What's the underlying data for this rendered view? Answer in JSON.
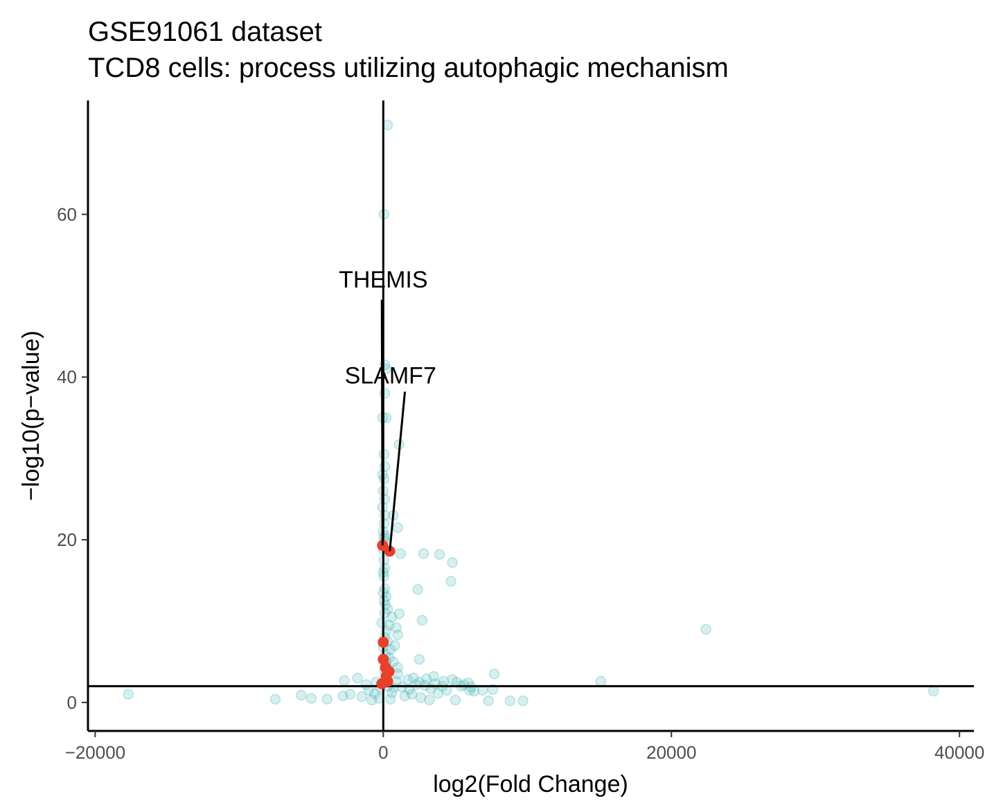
{
  "chart_data": {
    "type": "scatter",
    "title": "GSE91061 dataset",
    "subtitle": "TCD8 cells: process utilizing autophagic mechanism",
    "xlabel": "log2(Fold Change)",
    "ylabel": "−log10(p−value)",
    "xlim": [
      -20500,
      41000
    ],
    "ylim": [
      -3.5,
      74
    ],
    "xticks": [
      -20000,
      0,
      20000,
      40000
    ],
    "xtick_labels": [
      "−20000",
      "0",
      "20000",
      "40000"
    ],
    "yticks": [
      0,
      20,
      40,
      60
    ],
    "ytick_labels": [
      "0",
      "20",
      "40",
      "60"
    ],
    "reference_lines": {
      "vertical_x": 0,
      "horizontal_y": 2
    },
    "colors": {
      "background_points": "#4fb8b8",
      "highlight_points": "#e8402a",
      "lines": "#000000"
    },
    "background_points": [
      [
        300,
        71.0
      ],
      [
        50,
        60.0
      ],
      [
        100,
        41.5
      ],
      [
        200,
        41.0
      ],
      [
        100,
        38.0
      ],
      [
        -50,
        35.0
      ],
      [
        200,
        35.0
      ],
      [
        1100,
        31.7
      ],
      [
        50,
        30.5
      ],
      [
        100,
        29.0
      ],
      [
        -50,
        28.0
      ],
      [
        50,
        27.5
      ],
      [
        0,
        26.0
      ],
      [
        100,
        25.0
      ],
      [
        -50,
        24.0
      ],
      [
        100,
        23.0
      ],
      [
        700,
        23.0
      ],
      [
        50,
        22.0
      ],
      [
        1000,
        21.5
      ],
      [
        0,
        21.0
      ],
      [
        100,
        20.5
      ],
      [
        1200,
        18.3
      ],
      [
        2800,
        18.3
      ],
      [
        3900,
        18.2
      ],
      [
        4800,
        17.2
      ],
      [
        50,
        17.5
      ],
      [
        100,
        16.5
      ],
      [
        0,
        16.0
      ],
      [
        50,
        15.5
      ],
      [
        4700,
        14.9
      ],
      [
        2400,
        13.9
      ],
      [
        100,
        14.0
      ],
      [
        0,
        13.5
      ],
      [
        200,
        13.0
      ],
      [
        50,
        12.5
      ],
      [
        300,
        11.5
      ],
      [
        100,
        11.0
      ],
      [
        1100,
        10.9
      ],
      [
        600,
        10.5
      ],
      [
        2700,
        10.1
      ],
      [
        900,
        9.2
      ],
      [
        400,
        9.5
      ],
      [
        200,
        8.8
      ],
      [
        22400,
        9.0
      ],
      [
        1000,
        8.3
      ],
      [
        100,
        8.0
      ],
      [
        300,
        7.5
      ],
      [
        800,
        7.0
      ],
      [
        500,
        6.5
      ],
      [
        150,
        6.0
      ],
      [
        400,
        5.5
      ],
      [
        2500,
        5.3
      ],
      [
        700,
        5.0
      ],
      [
        200,
        4.5
      ],
      [
        1000,
        4.3
      ],
      [
        7700,
        3.5
      ],
      [
        15100,
        2.6
      ],
      [
        38200,
        1.4
      ],
      [
        -17700,
        1.0
      ],
      [
        -7500,
        0.4
      ],
      [
        -5700,
        0.9
      ],
      [
        -5000,
        0.5
      ],
      [
        -3900,
        0.4
      ],
      [
        -2800,
        0.8
      ],
      [
        -2300,
        1.0
      ],
      [
        -2700,
        2.7
      ],
      [
        -1800,
        3.0
      ],
      [
        -1000,
        1.5
      ],
      [
        -500,
        2.5
      ],
      [
        -300,
        0.5
      ],
      [
        -200,
        1.8
      ],
      [
        -800,
        0.3
      ],
      [
        300,
        2.0
      ],
      [
        600,
        1.2
      ],
      [
        900,
        2.6
      ],
      [
        1300,
        1.9
      ],
      [
        1700,
        2.8
      ],
      [
        2000,
        1.0
      ],
      [
        2300,
        2.2
      ],
      [
        2600,
        0.6
      ],
      [
        3000,
        2.9
      ],
      [
        3300,
        1.7
      ],
      [
        3600,
        2.3
      ],
      [
        3200,
        0.3
      ],
      [
        4100,
        2.0
      ],
      [
        4400,
        1.5
      ],
      [
        5100,
        2.5
      ],
      [
        5400,
        2.0
      ],
      [
        5900,
        2.4
      ],
      [
        6000,
        1.5
      ],
      [
        6300,
        1.4
      ],
      [
        6900,
        1.5
      ],
      [
        7600,
        1.6
      ],
      [
        5000,
        0.3
      ],
      [
        7300,
        0.2
      ],
      [
        8800,
        0.2
      ],
      [
        9700,
        0.2
      ],
      [
        4800,
        2.8
      ],
      [
        3500,
        3.2
      ],
      [
        6100,
        1.9
      ],
      [
        1500,
        0.8
      ],
      [
        2100,
        3.0
      ],
      [
        2900,
        2.1
      ],
      [
        4200,
        2.6
      ],
      [
        -1200,
        2.2
      ],
      [
        -1500,
        0.7
      ],
      [
        500,
        0.4
      ],
      [
        1800,
        1.6
      ],
      [
        2500,
        2.5
      ],
      [
        5600,
        2.2
      ],
      [
        3800,
        1.1
      ],
      [
        1000,
        3.5
      ],
      [
        700,
        1.8
      ],
      [
        -600,
        1.1
      ],
      [
        100,
        3.8
      ],
      [
        0,
        6.8
      ],
      [
        200,
        5.0
      ],
      [
        -100,
        9.8
      ],
      [
        150,
        12.0
      ],
      [
        0,
        18.8
      ],
      [
        100,
        19.8
      ],
      [
        50,
        20.2
      ]
    ],
    "highlight_points": [
      {
        "x": -50,
        "y": 19.3
      },
      {
        "x": 450,
        "y": 18.6
      },
      {
        "x": 0,
        "y": 7.4
      },
      {
        "x": 0,
        "y": 5.3
      },
      {
        "x": 150,
        "y": 4.3
      },
      {
        "x": 400,
        "y": 3.8
      },
      {
        "x": 200,
        "y": 3.2
      },
      {
        "x": 300,
        "y": 2.6
      },
      {
        "x": -100,
        "y": 2.3
      }
    ],
    "annotations": [
      {
        "text": "THEMIS",
        "x": -50,
        "y": 19.3,
        "text_x": 0,
        "text_y": 51.0,
        "line_top_y": 49.5
      },
      {
        "text": "SLAMF7",
        "x": 450,
        "y": 18.6,
        "text_x": 500,
        "text_y": 39.2,
        "line_top_y": 38.2
      }
    ]
  }
}
